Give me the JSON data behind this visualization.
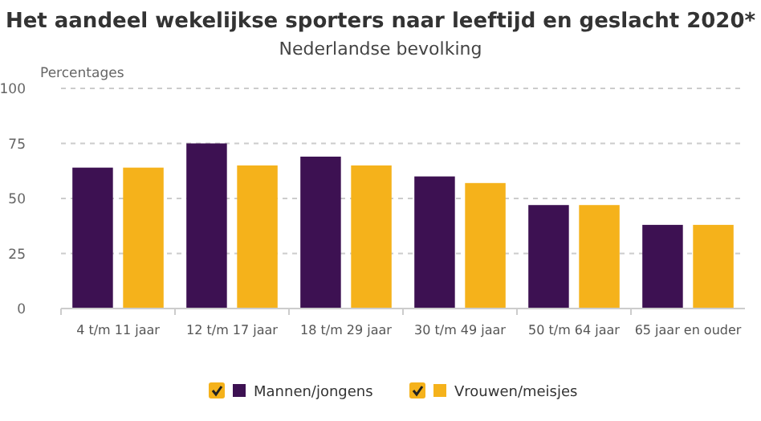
{
  "chart_data": {
    "type": "bar",
    "title": "Het aandeel wekelijkse sporters naar leeftijd en geslacht 2020*",
    "subtitle": "Nederlandse bevolking",
    "ylabel": "Percentages",
    "categories": [
      "4 t/m 11 jaar",
      "12 t/m 17 jaar",
      "18 t/m 29 jaar",
      "30 t/m 49 jaar",
      "50 t/m 64 jaar",
      "65 jaar en ouder"
    ],
    "series": [
      {
        "name": "Mannen/jongens",
        "color": "#3d1152",
        "values": [
          64,
          75,
          69,
          60,
          47,
          38
        ]
      },
      {
        "name": "Vrouwen/meisjes",
        "color": "#f5b21b",
        "values": [
          64,
          65,
          65,
          57,
          47,
          38
        ]
      }
    ],
    "ylim": [
      0,
      100
    ],
    "yticks": [
      0,
      25,
      50,
      75,
      100
    ],
    "grid": "y",
    "legend": "bottom"
  }
}
